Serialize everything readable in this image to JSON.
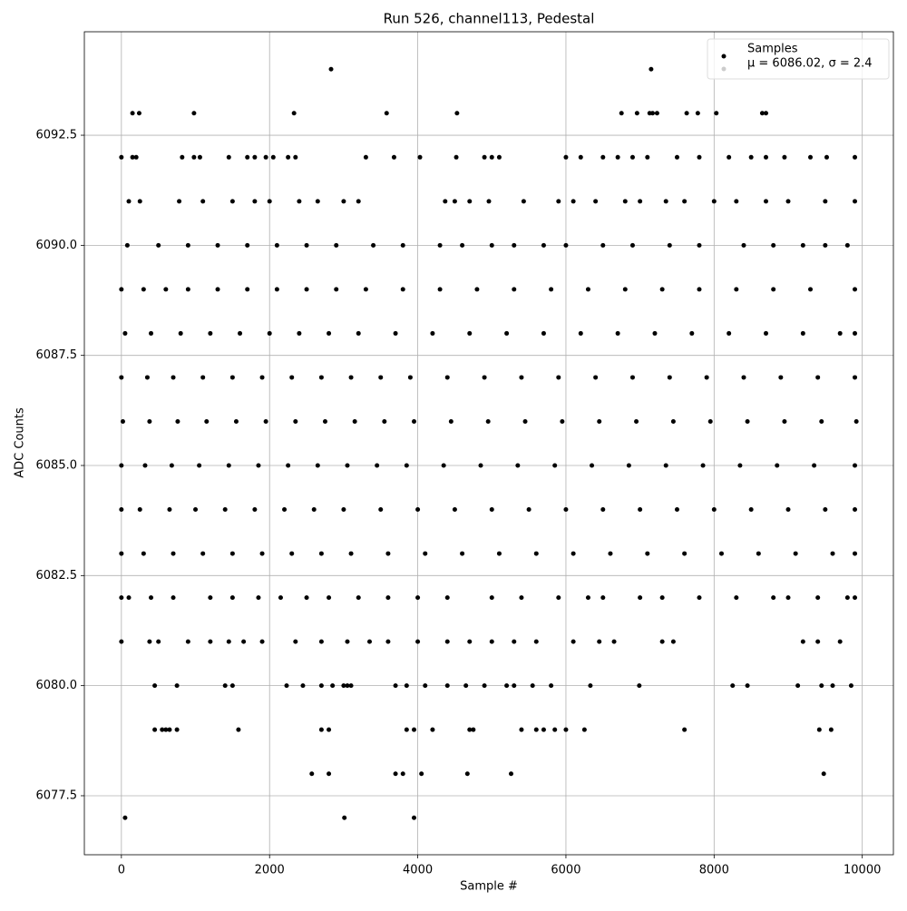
{
  "chart_data": {
    "type": "scatter",
    "title": "Run 526, channel113, Pedestal",
    "x_label": "Sample #",
    "y_label": "ADC Counts",
    "xlim": [
      -500,
      10420
    ],
    "ylim": [
      6076.16,
      6094.85
    ],
    "xticks": [
      0,
      2000,
      4000,
      6000,
      8000,
      10000
    ],
    "yticks": [
      6077.5,
      {
        "value": 6080,
        "label": "6080.0"
      },
      6082.5,
      {
        "value": 6085,
        "label": "6085.0"
      },
      6087.5,
      {
        "value": 6090,
        "label": "6090.0"
      },
      6092.5
    ],
    "grid": true,
    "legend": "upper right",
    "series": [
      {
        "name": "Samples",
        "color": "#000000",
        "x": [
          2830,
          7150,
          150,
          240,
          980,
          2330,
          3580,
          4530,
          6750,
          6960,
          7130,
          7170,
          7230,
          7630,
          7780,
          8030,
          8650,
          8700,
          0,
          150,
          200,
          820,
          980,
          1060,
          1450,
          1700,
          1800,
          1950,
          2050,
          2250,
          2350,
          3300,
          3680,
          4030,
          4520,
          4900,
          5000,
          5100,
          6000,
          6200,
          6500,
          6700,
          6900,
          7100,
          7500,
          7800,
          8200,
          8500,
          8700,
          8950,
          9300,
          9520,
          9900,
          100,
          250,
          780,
          1100,
          1500,
          1800,
          2000,
          2400,
          2650,
          3000,
          3200,
          4370,
          4500,
          4700,
          4960,
          5430,
          5900,
          6100,
          6400,
          6800,
          7000,
          7350,
          7600,
          8000,
          8300,
          8700,
          9000,
          9500,
          9900,
          80,
          500,
          900,
          1300,
          1700,
          2100,
          2500,
          2900,
          3400,
          3800,
          4300,
          4600,
          5000,
          5300,
          5700,
          6000,
          6500,
          6900,
          7400,
          7800,
          8400,
          8800,
          9200,
          9500,
          9800,
          0,
          300,
          600,
          900,
          1300,
          1700,
          2100,
          2500,
          2900,
          3300,
          3800,
          4300,
          4800,
          5300,
          5800,
          6300,
          6800,
          7300,
          7800,
          8300,
          8800,
          9300,
          9900,
          50,
          400,
          800,
          1200,
          1600,
          2000,
          2400,
          2800,
          3200,
          3700,
          4200,
          4700,
          5200,
          5700,
          6200,
          6700,
          7200,
          7700,
          8200,
          8700,
          9200,
          9700,
          9900,
          0,
          350,
          700,
          1100,
          1500,
          1900,
          2300,
          2700,
          3100,
          3500,
          3900,
          4400,
          4900,
          5400,
          5900,
          6400,
          6900,
          7400,
          7900,
          8400,
          8900,
          9400,
          9900,
          20,
          380,
          760,
          1150,
          1550,
          1950,
          2350,
          2750,
          3150,
          3550,
          3950,
          4450,
          4950,
          5450,
          5950,
          6450,
          6950,
          7450,
          7950,
          8450,
          8950,
          9450,
          9920,
          0,
          320,
          680,
          1050,
          1450,
          1850,
          2250,
          2650,
          3050,
          3450,
          3850,
          4350,
          4850,
          5350,
          5850,
          6350,
          6850,
          7350,
          7850,
          8350,
          8850,
          9350,
          9900,
          0,
          250,
          650,
          1000,
          1400,
          1800,
          2200,
          2600,
          3000,
          3500,
          4000,
          4500,
          5000,
          5500,
          6000,
          6500,
          7000,
          7500,
          8000,
          8500,
          9000,
          9500,
          9900,
          0,
          300,
          700,
          1100,
          1500,
          1900,
          2300,
          2700,
          3100,
          3600,
          4100,
          4600,
          5100,
          5600,
          6100,
          6600,
          7100,
          7600,
          8100,
          8600,
          9100,
          9600,
          9900,
          0,
          100,
          400,
          700,
          1200,
          1500,
          1850,
          2150,
          2500,
          2800,
          3200,
          3600,
          4000,
          4400,
          5000,
          5400,
          5900,
          6300,
          6500,
          7000,
          7300,
          7800,
          8300,
          8800,
          9000,
          9400,
          9800,
          9900,
          0,
          380,
          500,
          900,
          1200,
          1450,
          1650,
          1900,
          2350,
          2700,
          3050,
          3350,
          3600,
          4000,
          4400,
          4700,
          5000,
          5300,
          5600,
          6100,
          6450,
          6650,
          7300,
          7450,
          9200,
          9400,
          9700,
          450,
          750,
          1400,
          1500,
          2230,
          2450,
          2700,
          2850,
          3000,
          3050,
          3100,
          3700,
          3850,
          4100,
          4400,
          4650,
          4900,
          5200,
          5300,
          5550,
          5800,
          6330,
          6990,
          8250,
          8450,
          9130,
          9450,
          9600,
          9850,
          450,
          550,
          600,
          650,
          750,
          1580,
          2700,
          2800,
          3850,
          3950,
          4200,
          4700,
          4750,
          5400,
          5600,
          5700,
          5850,
          6000,
          6250,
          7600,
          9420,
          9580,
          2570,
          2800,
          3700,
          3800,
          4050,
          4670,
          5260,
          9480,
          50,
          3010,
          3950
        ],
        "values": [
          6094,
          6094,
          6093,
          6093,
          6093,
          6093,
          6093,
          6093,
          6093,
          6093,
          6093,
          6093,
          6093,
          6093,
          6093,
          6093,
          6093,
          6093,
          6092,
          6092,
          6092,
          6092,
          6092,
          6092,
          6092,
          6092,
          6092,
          6092,
          6092,
          6092,
          6092,
          6092,
          6092,
          6092,
          6092,
          6092,
          6092,
          6092,
          6092,
          6092,
          6092,
          6092,
          6092,
          6092,
          6092,
          6092,
          6092,
          6092,
          6092,
          6092,
          6092,
          6092,
          6092,
          6091,
          6091,
          6091,
          6091,
          6091,
          6091,
          6091,
          6091,
          6091,
          6091,
          6091,
          6091,
          6091,
          6091,
          6091,
          6091,
          6091,
          6091,
          6091,
          6091,
          6091,
          6091,
          6091,
          6091,
          6091,
          6091,
          6091,
          6091,
          6091,
          6090,
          6090,
          6090,
          6090,
          6090,
          6090,
          6090,
          6090,
          6090,
          6090,
          6090,
          6090,
          6090,
          6090,
          6090,
          6090,
          6090,
          6090,
          6090,
          6090,
          6090,
          6090,
          6090,
          6090,
          6090,
          6089,
          6089,
          6089,
          6089,
          6089,
          6089,
          6089,
          6089,
          6089,
          6089,
          6089,
          6089,
          6089,
          6089,
          6089,
          6089,
          6089,
          6089,
          6089,
          6089,
          6089,
          6089,
          6089,
          6088,
          6088,
          6088,
          6088,
          6088,
          6088,
          6088,
          6088,
          6088,
          6088,
          6088,
          6088,
          6088,
          6088,
          6088,
          6088,
          6088,
          6088,
          6088,
          6088,
          6088,
          6088,
          6088,
          6087,
          6087,
          6087,
          6087,
          6087,
          6087,
          6087,
          6087,
          6087,
          6087,
          6087,
          6087,
          6087,
          6087,
          6087,
          6087,
          6087,
          6087,
          6087,
          6087,
          6087,
          6087,
          6087,
          6086,
          6086,
          6086,
          6086,
          6086,
          6086,
          6086,
          6086,
          6086,
          6086,
          6086,
          6086,
          6086,
          6086,
          6086,
          6086,
          6086,
          6086,
          6086,
          6086,
          6086,
          6086,
          6086,
          6085,
          6085,
          6085,
          6085,
          6085,
          6085,
          6085,
          6085,
          6085,
          6085,
          6085,
          6085,
          6085,
          6085,
          6085,
          6085,
          6085,
          6085,
          6085,
          6085,
          6085,
          6085,
          6085,
          6084,
          6084,
          6084,
          6084,
          6084,
          6084,
          6084,
          6084,
          6084,
          6084,
          6084,
          6084,
          6084,
          6084,
          6084,
          6084,
          6084,
          6084,
          6084,
          6084,
          6084,
          6084,
          6084,
          6083,
          6083,
          6083,
          6083,
          6083,
          6083,
          6083,
          6083,
          6083,
          6083,
          6083,
          6083,
          6083,
          6083,
          6083,
          6083,
          6083,
          6083,
          6083,
          6083,
          6083,
          6083,
          6083,
          6082,
          6082,
          6082,
          6082,
          6082,
          6082,
          6082,
          6082,
          6082,
          6082,
          6082,
          6082,
          6082,
          6082,
          6082,
          6082,
          6082,
          6082,
          6082,
          6082,
          6082,
          6082,
          6082,
          6082,
          6082,
          6082,
          6082,
          6082,
          6081,
          6081,
          6081,
          6081,
          6081,
          6081,
          6081,
          6081,
          6081,
          6081,
          6081,
          6081,
          6081,
          6081,
          6081,
          6081,
          6081,
          6081,
          6081,
          6081,
          6081,
          6081,
          6081,
          6081,
          6081,
          6081,
          6081,
          6080,
          6080,
          6080,
          6080,
          6080,
          6080,
          6080,
          6080,
          6080,
          6080,
          6080,
          6080,
          6080,
          6080,
          6080,
          6080,
          6080,
          6080,
          6080,
          6080,
          6080,
          6080,
          6080,
          6080,
          6080,
          6080,
          6080,
          6080,
          6080,
          6079,
          6079,
          6079,
          6079,
          6079,
          6079,
          6079,
          6079,
          6079,
          6079,
          6079,
          6079,
          6079,
          6079,
          6079,
          6079,
          6079,
          6079,
          6079,
          6079,
          6079,
          6079,
          6078,
          6078,
          6078,
          6078,
          6078,
          6078,
          6078,
          6078,
          6077,
          6077,
          6077
        ]
      },
      {
        "name": "μ = 6086.02, σ = 2.4",
        "color": "#cccccc",
        "x": [],
        "values": []
      }
    ]
  }
}
